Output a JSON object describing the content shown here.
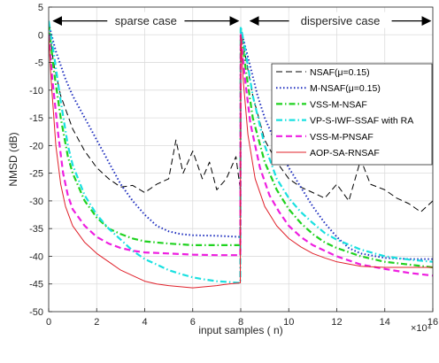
{
  "chart_data": {
    "type": "line",
    "title": "",
    "xlabel": "input samples ( n)",
    "ylabel": "NMSD (dB)",
    "x_exponent_label": "×10⁴",
    "xlim": [
      0,
      16
    ],
    "ylim": [
      -50,
      5
    ],
    "xticks": [
      0,
      2,
      4,
      6,
      8,
      10,
      12,
      14,
      16
    ],
    "yticks": [
      5,
      0,
      -5,
      -10,
      -15,
      -20,
      -25,
      -30,
      -35,
      -40,
      -45,
      -50
    ],
    "grid": true,
    "legend_position": "right",
    "annotations": [
      {
        "text": "sparse case",
        "x_from": 0.2,
        "x_to": 7.9,
        "y": 2.5
      },
      {
        "text": "dispersive case",
        "x_from": 8.4,
        "x_to": 15.9,
        "y": 2.5
      }
    ],
    "series": [
      {
        "name": "NSAF(μ=0.15)",
        "color": "#000000",
        "style": "dashed",
        "points": [
          [
            0,
            2
          ],
          [
            0.2,
            -5
          ],
          [
            0.5,
            -11
          ],
          [
            1,
            -17
          ],
          [
            1.5,
            -21
          ],
          [
            2,
            -24
          ],
          [
            2.5,
            -26
          ],
          [
            3,
            -27.5
          ],
          [
            3.5,
            -27.2
          ],
          [
            4,
            -28.5
          ],
          [
            4.5,
            -27
          ],
          [
            5,
            -26
          ],
          [
            5.3,
            -19
          ],
          [
            5.6,
            -25
          ],
          [
            6,
            -21
          ],
          [
            6.4,
            -26
          ],
          [
            6.7,
            -23
          ],
          [
            7,
            -28
          ],
          [
            7.4,
            -26
          ],
          [
            7.8,
            -22
          ],
          [
            7.98,
            -28
          ],
          [
            8.0,
            1
          ],
          [
            8.2,
            -4
          ],
          [
            8.5,
            -11
          ],
          [
            9,
            -19
          ],
          [
            9.5,
            -23
          ],
          [
            10,
            -26
          ],
          [
            10.5,
            -27.5
          ],
          [
            11,
            -28.5
          ],
          [
            11.5,
            -29.5
          ],
          [
            12,
            -27
          ],
          [
            12.5,
            -30
          ],
          [
            13,
            -22.5
          ],
          [
            13.4,
            -27
          ],
          [
            14,
            -28
          ],
          [
            14.5,
            -29.5
          ],
          [
            15,
            -30.5
          ],
          [
            15.5,
            -32
          ],
          [
            16,
            -30
          ]
        ]
      },
      {
        "name": "M-NSAF(μ=0.15)",
        "color": "#1f2fbf",
        "style": "dotted",
        "points": [
          [
            0,
            2
          ],
          [
            0.3,
            -3
          ],
          [
            0.7,
            -8
          ],
          [
            1,
            -11
          ],
          [
            1.5,
            -15
          ],
          [
            2,
            -19
          ],
          [
            2.5,
            -23
          ],
          [
            3,
            -27
          ],
          [
            3.5,
            -30
          ],
          [
            4,
            -32.5
          ],
          [
            4.5,
            -34.5
          ],
          [
            5,
            -35.5
          ],
          [
            5.5,
            -36
          ],
          [
            6,
            -36.2
          ],
          [
            7,
            -36.3
          ],
          [
            7.98,
            -36.5
          ],
          [
            8.0,
            1
          ],
          [
            8.3,
            -4
          ],
          [
            8.7,
            -11
          ],
          [
            9,
            -15
          ],
          [
            9.5,
            -20
          ],
          [
            10,
            -24
          ],
          [
            10.5,
            -27.5
          ],
          [
            11,
            -31
          ],
          [
            11.5,
            -34
          ],
          [
            12,
            -36.5
          ],
          [
            12.5,
            -38.5
          ],
          [
            13,
            -39.5
          ],
          [
            14,
            -40.3
          ],
          [
            15,
            -40.5
          ],
          [
            16,
            -40.5
          ]
        ]
      },
      {
        "name": "VSS-M-NSAF",
        "color": "#1fd21f",
        "style": "dashdot",
        "points": [
          [
            0,
            2
          ],
          [
            0.2,
            -6
          ],
          [
            0.5,
            -15
          ],
          [
            0.8,
            -22
          ],
          [
            1,
            -25
          ],
          [
            1.5,
            -30
          ],
          [
            2,
            -33
          ],
          [
            2.5,
            -35
          ],
          [
            3,
            -36
          ],
          [
            3.5,
            -36.8
          ],
          [
            4,
            -37.3
          ],
          [
            5,
            -37.7
          ],
          [
            6,
            -38
          ],
          [
            7,
            -38
          ],
          [
            7.98,
            -38
          ],
          [
            8.0,
            1
          ],
          [
            8.2,
            -6
          ],
          [
            8.5,
            -15
          ],
          [
            9,
            -23
          ],
          [
            9.5,
            -28
          ],
          [
            10,
            -31.5
          ],
          [
            10.5,
            -34
          ],
          [
            11,
            -36
          ],
          [
            11.5,
            -37.5
          ],
          [
            12,
            -38.5
          ],
          [
            13,
            -40
          ],
          [
            14,
            -41
          ],
          [
            15,
            -41.5
          ],
          [
            16,
            -42
          ]
        ]
      },
      {
        "name": "VP-S-IWF-SSAF with RA",
        "color": "#19e0e0",
        "style": "dashdot",
        "points": [
          [
            0,
            2.5
          ],
          [
            0.2,
            -3
          ],
          [
            0.5,
            -12
          ],
          [
            0.8,
            -20
          ],
          [
            1,
            -23.5
          ],
          [
            1.5,
            -29
          ],
          [
            2,
            -32.5
          ],
          [
            2.5,
            -35
          ],
          [
            3,
            -37
          ],
          [
            3.5,
            -39
          ],
          [
            4,
            -40.5
          ],
          [
            4.5,
            -41.5
          ],
          [
            5,
            -42.5
          ],
          [
            5.5,
            -43.2
          ],
          [
            6,
            -43.8
          ],
          [
            6.5,
            -44.2
          ],
          [
            7,
            -44.5
          ],
          [
            7.98,
            -44.8
          ],
          [
            8.0,
            1.5
          ],
          [
            8.2,
            -3
          ],
          [
            8.5,
            -11
          ],
          [
            9,
            -20
          ],
          [
            9.5,
            -26
          ],
          [
            10,
            -29.5
          ],
          [
            10.5,
            -32
          ],
          [
            11,
            -34
          ],
          [
            11.5,
            -35.8
          ],
          [
            12,
            -37
          ],
          [
            13,
            -38.8
          ],
          [
            14,
            -40
          ],
          [
            15,
            -40.6
          ],
          [
            16,
            -41
          ]
        ]
      },
      {
        "name": "VSS-M-PNSAF",
        "color": "#ee1fe0",
        "style": "dashed",
        "points": [
          [
            0,
            0
          ],
          [
            0.15,
            -8
          ],
          [
            0.4,
            -18
          ],
          [
            0.6,
            -25
          ],
          [
            0.8,
            -29
          ],
          [
            1,
            -31.5
          ],
          [
            1.5,
            -34.5
          ],
          [
            2,
            -36.5
          ],
          [
            2.5,
            -37.7
          ],
          [
            3,
            -38.5
          ],
          [
            3.5,
            -39
          ],
          [
            4,
            -39.3
          ],
          [
            5,
            -39.5
          ],
          [
            6,
            -39.7
          ],
          [
            7,
            -39.8
          ],
          [
            7.98,
            -39.8
          ],
          [
            8.0,
            0
          ],
          [
            8.15,
            -7
          ],
          [
            8.4,
            -16
          ],
          [
            8.8,
            -24
          ],
          [
            9.2,
            -29
          ],
          [
            9.6,
            -32
          ],
          [
            10,
            -34.5
          ],
          [
            10.5,
            -36.5
          ],
          [
            11,
            -38
          ],
          [
            11.5,
            -39
          ],
          [
            12,
            -40
          ],
          [
            13,
            -41.5
          ],
          [
            14,
            -42.3
          ],
          [
            15,
            -43
          ],
          [
            16,
            -43.5
          ]
        ]
      },
      {
        "name": "AOP-SA-RNSAF",
        "color": "#e0202a",
        "style": "solid",
        "points": [
          [
            0,
            0
          ],
          [
            0.1,
            -8
          ],
          [
            0.3,
            -20
          ],
          [
            0.5,
            -27
          ],
          [
            0.7,
            -31
          ],
          [
            1,
            -34.5
          ],
          [
            1.5,
            -37.5
          ],
          [
            2,
            -39.5
          ],
          [
            2.5,
            -41
          ],
          [
            3,
            -42.5
          ],
          [
            3.5,
            -43.5
          ],
          [
            4,
            -44.5
          ],
          [
            4.5,
            -45
          ],
          [
            5,
            -45.3
          ],
          [
            5.5,
            -45.5
          ],
          [
            6,
            -45.7
          ],
          [
            6.5,
            -45.5
          ],
          [
            7,
            -45.3
          ],
          [
            7.5,
            -45
          ],
          [
            7.98,
            -44.8
          ],
          [
            8.0,
            0
          ],
          [
            8.1,
            -8
          ],
          [
            8.3,
            -18
          ],
          [
            8.6,
            -26
          ],
          [
            9,
            -31
          ],
          [
            9.5,
            -34.5
          ],
          [
            10,
            -36.8
          ],
          [
            10.5,
            -38.3
          ],
          [
            11,
            -39.5
          ],
          [
            11.5,
            -40.3
          ],
          [
            12,
            -41
          ],
          [
            13,
            -41.8
          ],
          [
            14,
            -42
          ],
          [
            15,
            -42
          ],
          [
            16,
            -42
          ]
        ]
      }
    ]
  }
}
